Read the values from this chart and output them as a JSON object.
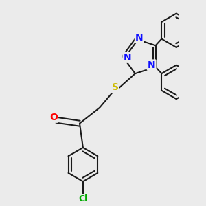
{
  "bg_color": "#ebebeb",
  "bond_color": "#1a1a1a",
  "bond_width": 1.5,
  "atom_colors": {
    "N": "#1010ff",
    "O": "#ff0000",
    "S": "#ccbb00",
    "Cl": "#00aa00",
    "C": "#1a1a1a"
  },
  "font_size": 10
}
